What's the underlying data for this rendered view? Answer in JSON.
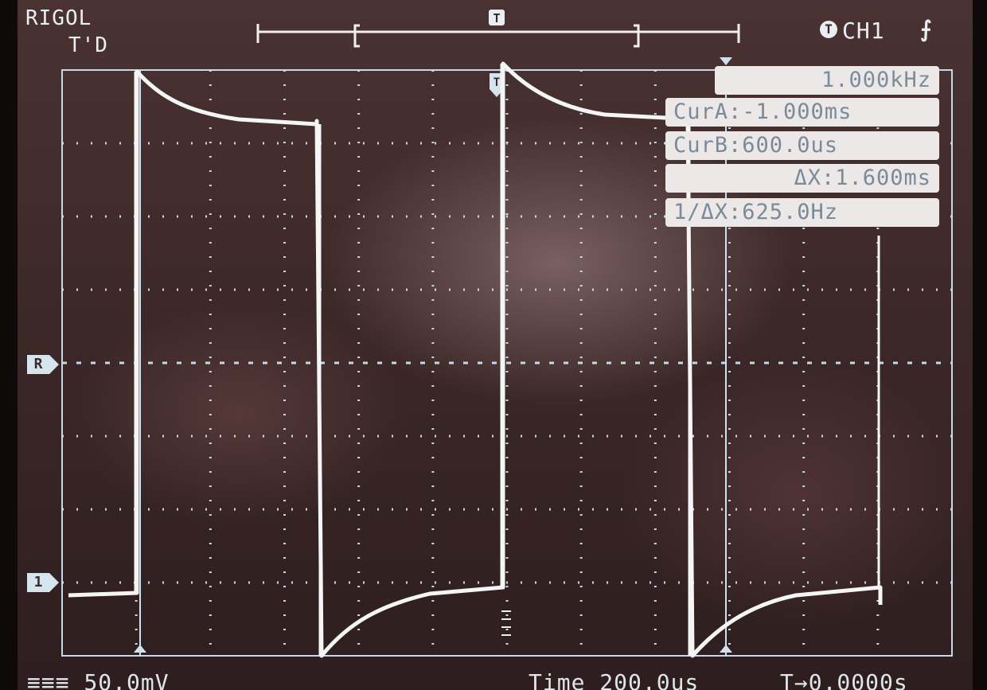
{
  "header": {
    "brand": "RIGOL",
    "mode": "T'D",
    "trigger_icon": "T",
    "trigger_channel": "CH1",
    "trigger_edge_icon": "rising-edge-icon"
  },
  "measurements": {
    "frequency": "1.000kHz",
    "cursor_a": "CurA:-1.000ms",
    "cursor_b": "CurB:600.0us",
    "delta_x": "ΔX:1.600ms",
    "inv_delta_x": "1/ΔX:625.0Hz"
  },
  "markers": {
    "reference": "R",
    "channel1": "1",
    "trigger": "T"
  },
  "footer": {
    "ch1_scale": "50.0mV",
    "timebase": "Time 200.0us",
    "trigger_offset": "0.0000s"
  },
  "colors": {
    "trace": "#f4f6f6",
    "grid": "#c8d8e8",
    "cursor": "#cfe0ef",
    "background": "#3d2828"
  }
}
